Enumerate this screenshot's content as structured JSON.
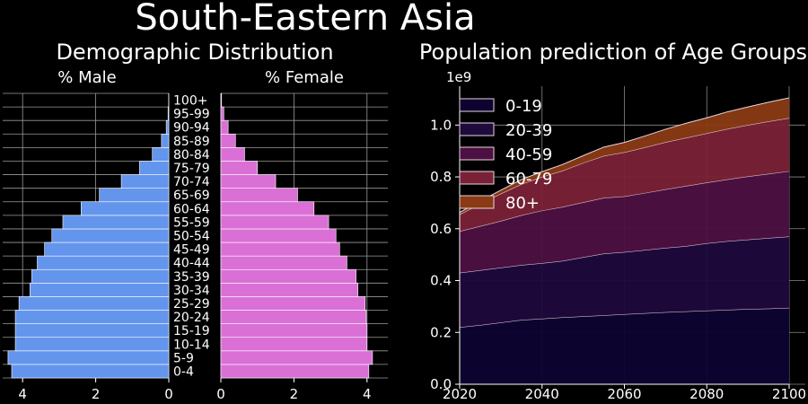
{
  "title": "South-Eastern Asia",
  "colors": {
    "background": "#000000",
    "male": "#6495ED",
    "female": "#DA70D6",
    "area_0_19": "#0d0330",
    "area_20_39": "#1f0a3c",
    "area_40_59": "#4c1042",
    "area_60_79": "#7a2137",
    "area_80_plus": "#8a3a14"
  },
  "chart_data": [
    {
      "type": "bar",
      "orientation": "horizontal",
      "title": "Demographic Distribution",
      "categories": [
        "0-4",
        "5-9",
        "10-14",
        "15-19",
        "20-24",
        "25-29",
        "30-34",
        "35-39",
        "40-44",
        "45-49",
        "50-54",
        "55-59",
        "60-64",
        "65-69",
        "70-74",
        "75-79",
        "80-84",
        "85-89",
        "90-94",
        "95-99",
        "100+"
      ],
      "series": [
        {
          "name": "% Male",
          "values": [
            4.3,
            4.4,
            4.2,
            4.2,
            4.2,
            4.1,
            3.8,
            3.75,
            3.6,
            3.4,
            3.2,
            2.9,
            2.4,
            1.9,
            1.3,
            0.8,
            0.45,
            0.2,
            0.07,
            0.02,
            0.005
          ]
        },
        {
          "name": "% Female",
          "values": [
            4.05,
            4.15,
            4.0,
            4.0,
            3.98,
            3.95,
            3.75,
            3.7,
            3.45,
            3.25,
            3.15,
            2.95,
            2.55,
            2.1,
            1.5,
            1.0,
            0.65,
            0.4,
            0.2,
            0.08,
            0.02
          ]
        }
      ],
      "xlim": [
        0,
        4.5
      ],
      "xticks": [
        "4",
        "2",
        "0",
        "0",
        "2",
        "4"
      ],
      "grid": true
    },
    {
      "type": "area",
      "stacked": true,
      "title": "Population prediction of Age Groups",
      "y_scale_label": "1e9",
      "x": [
        2020,
        2025,
        2030,
        2035,
        2040,
        2045,
        2050,
        2055,
        2060,
        2065,
        2070,
        2075,
        2080,
        2085,
        2090,
        2095,
        2100
      ],
      "series": [
        {
          "name": "0-19",
          "values": [
            0.22,
            0.228,
            0.238,
            0.248,
            0.253,
            0.258,
            0.262,
            0.266,
            0.27,
            0.274,
            0.278,
            0.281,
            0.284,
            0.287,
            0.29,
            0.292,
            0.295
          ]
        },
        {
          "name": "20-39",
          "values": [
            0.21,
            0.212,
            0.212,
            0.212,
            0.214,
            0.218,
            0.228,
            0.238,
            0.24,
            0.244,
            0.248,
            0.252,
            0.26,
            0.265,
            0.268,
            0.272,
            0.275
          ]
        },
        {
          "name": "40-59",
          "values": [
            0.16,
            0.17,
            0.18,
            0.192,
            0.203,
            0.208,
            0.212,
            0.215,
            0.215,
            0.22,
            0.226,
            0.232,
            0.234,
            0.238,
            0.244,
            0.248,
            0.252
          ]
        },
        {
          "name": "60-79",
          "values": [
            0.065,
            0.086,
            0.105,
            0.12,
            0.13,
            0.14,
            0.152,
            0.162,
            0.17,
            0.176,
            0.182,
            0.186,
            0.19,
            0.195,
            0.198,
            0.202,
            0.205
          ]
        },
        {
          "name": "80+",
          "values": [
            0.008,
            0.011,
            0.014,
            0.018,
            0.02,
            0.024,
            0.028,
            0.034,
            0.038,
            0.044,
            0.05,
            0.056,
            0.06,
            0.066,
            0.07,
            0.074,
            0.078
          ]
        }
      ],
      "xlim": [
        2020,
        2100
      ],
      "ylim": [
        0,
        1.15
      ],
      "xticks": [
        2020,
        2040,
        2060,
        2080,
        2100
      ],
      "yticks": [
        "0.0",
        "0.2",
        "0.4",
        "0.6",
        "0.8",
        "1.0"
      ],
      "legend": "top-left",
      "grid": true
    }
  ]
}
